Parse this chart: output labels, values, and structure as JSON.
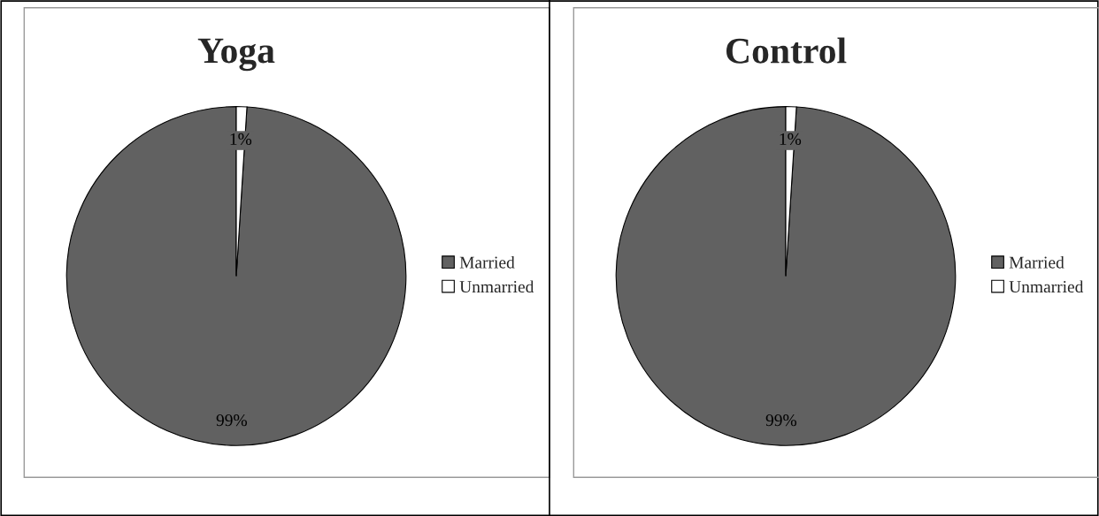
{
  "chart_data": [
    {
      "type": "pie",
      "title": "Yoga",
      "categories": [
        "Married",
        "Unmarried"
      ],
      "values": [
        99,
        1
      ],
      "colors": [
        "#616161",
        "#ffffff"
      ],
      "value_labels": [
        "99%",
        "1%"
      ],
      "legend": "right"
    },
    {
      "type": "pie",
      "title": "Control",
      "categories": [
        "Married",
        "Unmarried"
      ],
      "values": [
        99,
        1
      ],
      "colors": [
        "#616161",
        "#ffffff"
      ],
      "value_labels": [
        "99%",
        "1%"
      ],
      "legend": "right"
    }
  ]
}
